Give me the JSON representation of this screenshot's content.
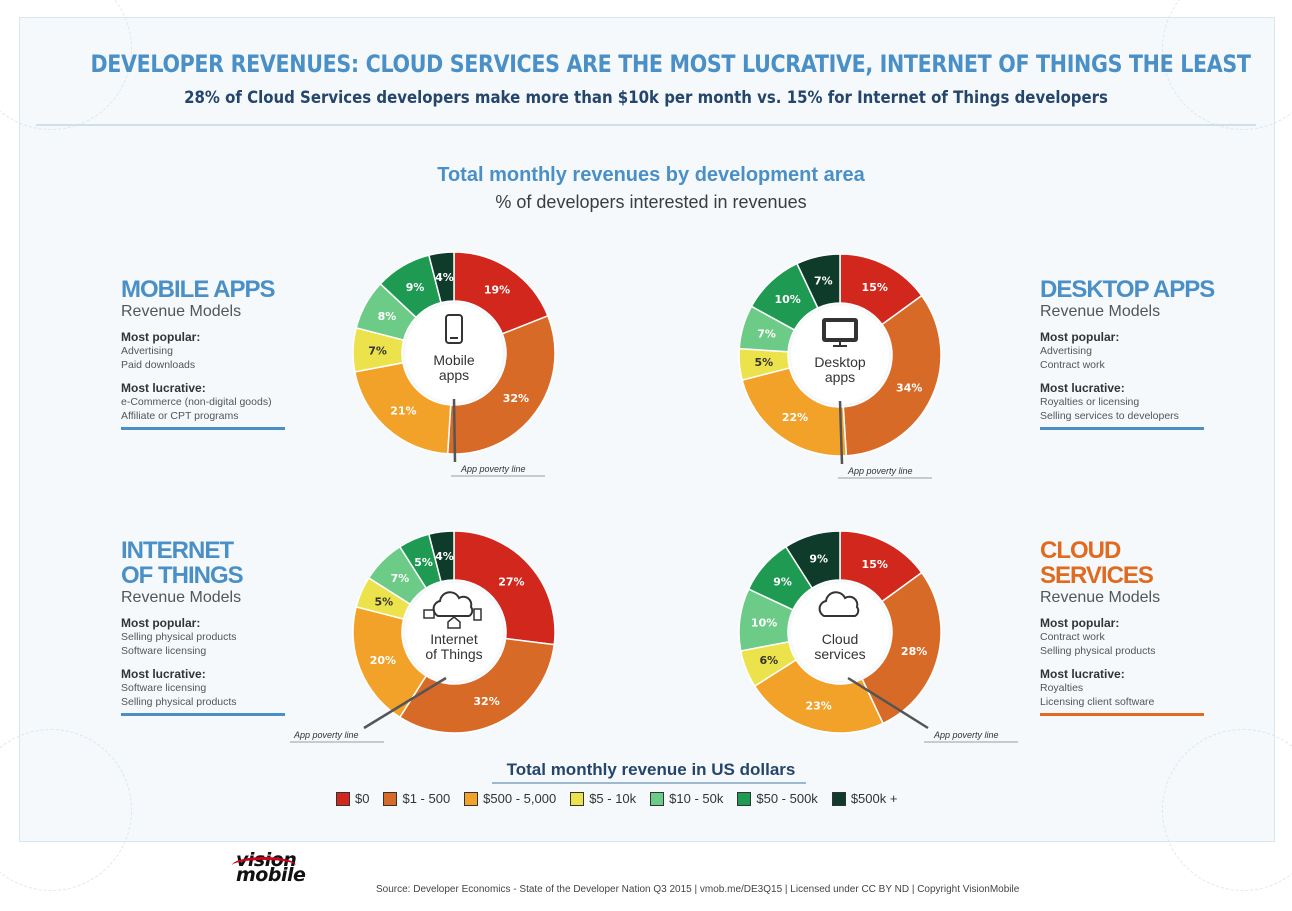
{
  "header": {
    "title": "DEVELOPER REVENUES: CLOUD SERVICES ARE THE MOST LUCRATIVE, INTERNET OF  THINGS THE LEAST",
    "subtitle": "28% of Cloud Services developers make more than $10k per month vs. 15% for Internet of  Things developers"
  },
  "chart_header": {
    "title": "Total monthly revenues by development area",
    "subtitle": "% of developers interested in revenues"
  },
  "panels": {
    "mobile": {
      "title": "MOBILE APPS",
      "subtitle": "Revenue Models",
      "popular_label": "Most popular:",
      "popular": [
        "Advertising",
        "Paid downloads"
      ],
      "lucrative_label": "Most lucrative:",
      "lucrative": [
        "e-Commerce (non-digital goods)",
        "Affiliate or CPT programs"
      ]
    },
    "desktop": {
      "title": "DESKTOP APPS",
      "subtitle": "Revenue Models",
      "popular_label": "Most popular:",
      "popular": [
        "Advertising",
        "Contract work"
      ],
      "lucrative_label": "Most lucrative:",
      "lucrative": [
        "Royalties or licensing",
        "Selling services to developers"
      ]
    },
    "iot": {
      "title": "INTERNET\nOF THINGS",
      "subtitle": "Revenue Models",
      "popular_label": "Most popular:",
      "popular": [
        "Selling physical products",
        "Software licensing"
      ],
      "lucrative_label": "Most lucrative:",
      "lucrative": [
        "Software licensing",
        "Selling physical products"
      ]
    },
    "cloud": {
      "title": "CLOUD\nSERVICES",
      "subtitle": "Revenue Models",
      "popular_label": "Most popular:",
      "popular": [
        "Contract work",
        "Selling physical products"
      ],
      "lucrative_label": "Most lucrative:",
      "lucrative": [
        "Royalties",
        "Licensing client software"
      ]
    }
  },
  "chart_data": {
    "type": "pie",
    "donut": true,
    "categories": [
      "$0",
      "$1 - 500",
      "$500 - 5,000",
      "$5 - 10k",
      "$10 - 50k",
      "$50 - 500k",
      "$500k +"
    ],
    "colors": [
      "#d2271c",
      "#d86a28",
      "#f2a129",
      "#ece34c",
      "#6ccb86",
      "#1f9a52",
      "#0f3b2a"
    ],
    "label_colors": [
      "#ffffff",
      "#ffffff",
      "#ffffff",
      "#333333",
      "#ffffff",
      "#ffffff",
      "#ffffff"
    ],
    "poverty_line_label": "App poverty line",
    "legend_title": "Total monthly revenue in US dollars",
    "charts": [
      {
        "name": "mobile",
        "center_label": [
          "Mobile",
          "apps"
        ],
        "icon": "smartphone-icon",
        "values": [
          19,
          32,
          21,
          7,
          8,
          9,
          4
        ]
      },
      {
        "name": "desktop",
        "center_label": [
          "Desktop",
          "apps"
        ],
        "icon": "monitor-icon",
        "values": [
          15,
          34,
          22,
          5,
          7,
          10,
          7
        ]
      },
      {
        "name": "iot",
        "center_label": [
          "Internet",
          "of Things"
        ],
        "icon": "iot-cloud-icon",
        "values": [
          27,
          32,
          20,
          5,
          7,
          5,
          4
        ]
      },
      {
        "name": "cloud",
        "center_label": [
          "Cloud",
          "services"
        ],
        "icon": "cloud-icon",
        "values": [
          15,
          28,
          23,
          6,
          10,
          9,
          9
        ]
      }
    ]
  },
  "footer": {
    "logo_line1": "vision",
    "logo_line2": "mobile",
    "source": "Source: Developer Economics - State of the Developer Nation Q3 2015 | vmob.me/DE3Q15 | Licensed under CC BY ND | Copyright VisionMobile"
  }
}
